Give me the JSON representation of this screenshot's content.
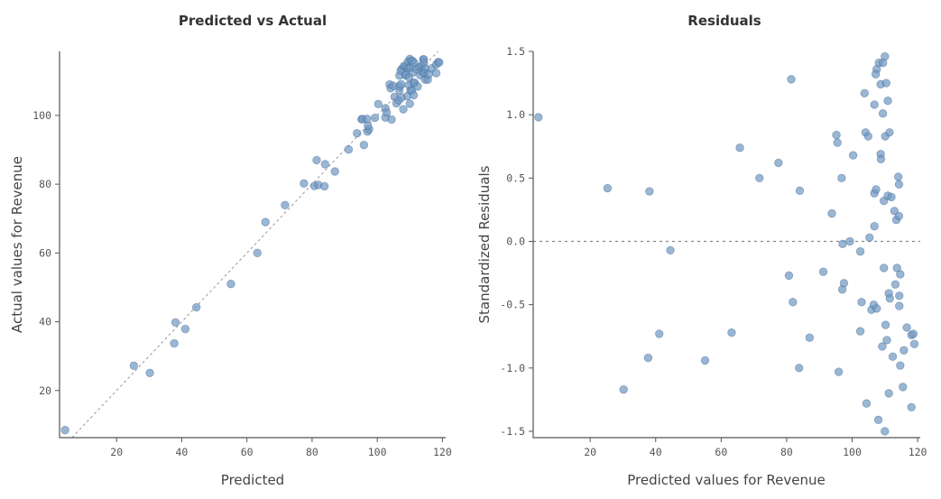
{
  "chart_data": [
    {
      "type": "scatter",
      "title": "Predicted vs Actual",
      "xlabel": "Predicted",
      "ylabel": "Actual values for Revenue",
      "xlim": [
        2.5,
        121
      ],
      "ylim": [
        6.3,
        118.6
      ],
      "xticks": [
        20,
        40,
        60,
        80,
        100,
        120
      ],
      "yticks": [
        20,
        40,
        60,
        80,
        100
      ],
      "reference_line": "y = x (dashed)",
      "grid": false,
      "point_color": "#6f97c0",
      "x": [
        4.2,
        25.3,
        38.1,
        30.2,
        37.7,
        41.1,
        44.5,
        55.1,
        63.2,
        65.7,
        71.7,
        77.5,
        81.4,
        80.7,
        81.9,
        84.0,
        83.8,
        87.0,
        91.2,
        93.8,
        95.2,
        95.5,
        95.9,
        96.8,
        97.0,
        97.5,
        97.1,
        99.3,
        100.3,
        102.5,
        102.5,
        102.9,
        103.8,
        104.1,
        104.9,
        104.4,
        105.3,
        105.9,
        106.6,
        107.5,
        106.8,
        106.8,
        106.8,
        107.3,
        107.5,
        107.2,
        108.0,
        108.2,
        108.7,
        108.7,
        108.8,
        109.4,
        109.4,
        109.2,
        109.7,
        109.7,
        110.0,
        110.1,
        110.2,
        110.0,
        110.4,
        110.6,
        110.9,
        110.9,
        111.2,
        111.2,
        111.5,
        111.4,
        112.0,
        112.4,
        112.9,
        113.2,
        113.5,
        113.7,
        114.1,
        114.3,
        114.3,
        114.4,
        114.7,
        114.4,
        114.7,
        115.5,
        115.8,
        116.7,
        118.1,
        118.7,
        119.0,
        118.1
      ],
      "y": [
        8.5,
        27.2,
        39.8,
        25.1,
        33.7,
        37.9,
        44.2,
        51.0,
        60.0,
        69.0,
        73.9,
        80.2,
        87.0,
        79.5,
        79.8,
        85.8,
        79.4,
        83.7,
        90.1,
        94.8,
        98.9,
        98.9,
        91.4,
        99.0,
        95.3,
        96.0,
        97.0,
        99.3,
        103.3,
        102.1,
        99.4,
        100.8,
        109.0,
        107.9,
        108.6,
        98.8,
        105.4,
        103.5,
        104.4,
        105.2,
        107.3,
        111.6,
        108.5,
        109.1,
        113.5,
        113.0,
        101.8,
        114.4,
        114.2,
        111.7,
        111.7,
        115.6,
        113.8,
        105.6,
        111.1,
        108.8,
        116.4,
        113.8,
        107.3,
        103.4,
        115.9,
        107.2,
        115.8,
        112.5,
        105.9,
        109.4,
        109.5,
        115.2,
        113.5,
        108.4,
        114.0,
        111.7,
        114.3,
        112.8,
        116.3,
        116.3,
        115.2,
        112.5,
        113.6,
        112.2,
        110.4,
        110.4,
        112.0,
        113.7,
        114.8,
        115.5,
        115.4,
        112.3
      ]
    },
    {
      "type": "scatter",
      "title": "Residuals",
      "xlabel": "Predicted values for Revenue",
      "ylabel": "Standardized Residuals",
      "xlim": [
        2.6,
        120.8
      ],
      "ylim": [
        -1.55,
        1.5
      ],
      "xticks": [
        20,
        40,
        60,
        80,
        100,
        120
      ],
      "yticks": [
        -1.5,
        -1.0,
        -0.5,
        0.0,
        0.5,
        1.0,
        1.5
      ],
      "ytick_labels": [
        "-1.5",
        "-1.0",
        "-0.5",
        "0.0",
        "0.5",
        "1.0",
        "1.5"
      ],
      "reference_line": "y = 0 (dotted)",
      "grid": false,
      "point_color": "#6f97c0",
      "x": [
        4.2,
        25.3,
        38.1,
        30.2,
        37.7,
        41.1,
        44.5,
        55.1,
        63.2,
        65.7,
        71.7,
        77.5,
        81.4,
        80.7,
        81.9,
        84.0,
        83.8,
        87.0,
        91.2,
        93.8,
        95.2,
        95.5,
        95.9,
        96.8,
        97.0,
        97.5,
        97.1,
        99.3,
        100.3,
        102.5,
        102.5,
        102.9,
        103.8,
        104.1,
        104.9,
        104.4,
        105.3,
        105.9,
        106.6,
        107.5,
        106.8,
        106.8,
        106.8,
        107.3,
        107.5,
        107.2,
        108.0,
        108.2,
        108.7,
        108.7,
        108.8,
        109.4,
        109.4,
        109.2,
        109.7,
        109.7,
        110.0,
        110.1,
        110.2,
        110.0,
        110.4,
        110.6,
        110.9,
        110.9,
        111.2,
        111.2,
        111.5,
        111.4,
        112.0,
        112.4,
        112.9,
        113.2,
        113.5,
        113.7,
        114.1,
        114.3,
        114.3,
        114.4,
        114.7,
        114.4,
        114.7,
        115.5,
        115.8,
        116.7,
        118.1,
        118.7,
        119.0,
        118.1
      ],
      "y": [
        0.98,
        0.42,
        0.395,
        -1.17,
        -0.92,
        -0.73,
        -0.07,
        -0.94,
        -0.72,
        0.74,
        0.5,
        0.62,
        1.28,
        -0.27,
        -0.48,
        0.4,
        -1.0,
        -0.76,
        -0.24,
        0.22,
        0.84,
        0.78,
        -1.03,
        0.5,
        -0.38,
        -0.33,
        -0.02,
        0.0,
        0.68,
        -0.08,
        -0.71,
        -0.48,
        1.17,
        0.86,
        0.83,
        -1.28,
        0.03,
        -0.54,
        -0.5,
        -0.53,
        0.12,
        1.08,
        0.38,
        0.41,
        1.36,
        1.32,
        -1.41,
        1.41,
        1.24,
        0.69,
        0.65,
        1.41,
        1.01,
        -0.83,
        0.32,
        -0.21,
        1.46,
        0.83,
        -0.66,
        -1.5,
        1.25,
        -0.78,
        1.11,
        0.36,
        -1.2,
        -0.41,
        -0.45,
        0.86,
        0.35,
        -0.91,
        0.24,
        -0.34,
        0.17,
        -0.21,
        0.51,
        0.45,
        0.2,
        -0.43,
        -0.26,
        -0.51,
        -0.98,
        -1.15,
        -0.86,
        -0.68,
        -0.74,
        -0.73,
        -0.81,
        -1.31
      ]
    }
  ]
}
